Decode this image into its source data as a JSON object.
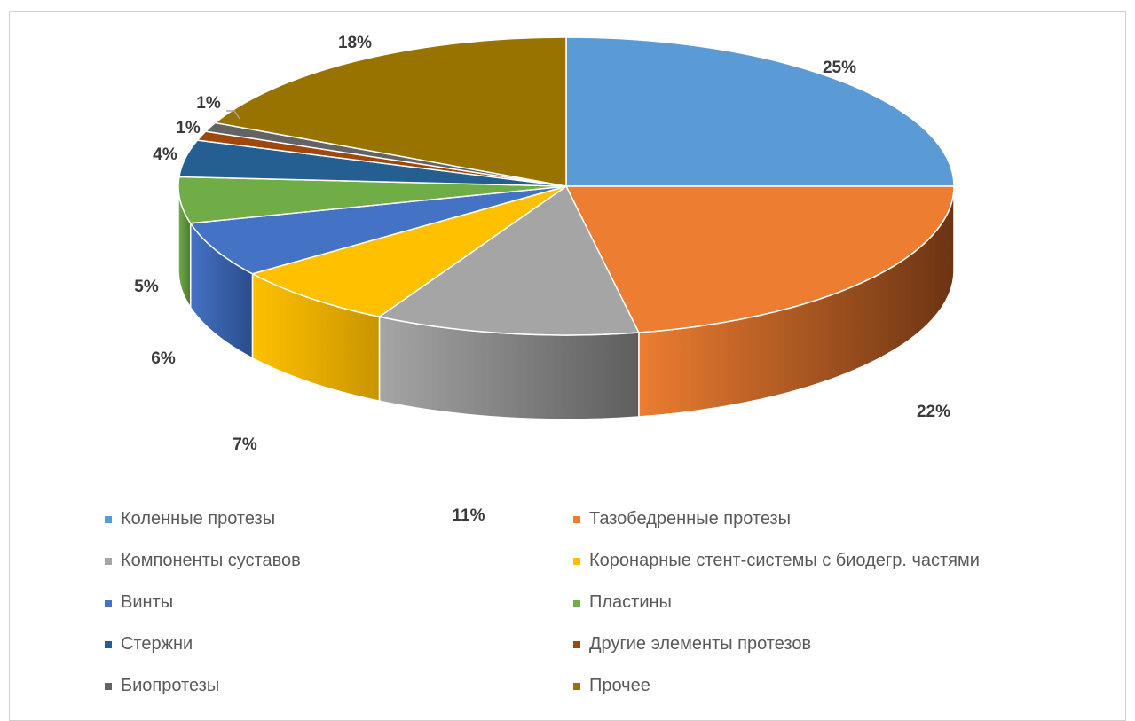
{
  "chart_data": {
    "type": "pie",
    "title": "",
    "legend_position": "bottom",
    "series": [
      {
        "name": "Коленные протезы",
        "value": 25,
        "label": "25%",
        "color": "#5b9bd5",
        "side": "#3c6d9c"
      },
      {
        "name": "Тазобедренные протезы",
        "value": 22,
        "label": "22%",
        "color": "#ed7d31",
        "side": "#6b3413"
      },
      {
        "name": "Компоненты суставов",
        "value": 11,
        "label": "11%",
        "color": "#a5a5a5",
        "side": "#5e5e5e"
      },
      {
        "name": "Коронарные стент-системы с биодегр. частями",
        "value": 7,
        "label": "7%",
        "color": "#ffc000",
        "side": "#c99500"
      },
      {
        "name": "Винты",
        "value": 6,
        "label": "6%",
        "color": "#4472c4",
        "side": "#2b4c8a"
      },
      {
        "name": "Пластины",
        "value": 5,
        "label": "5%",
        "color": "#70ad47",
        "side": "#4a7a2e"
      },
      {
        "name": "Стержни",
        "value": 4,
        "label": "4%",
        "color": "#255e91",
        "side": "#163a5a"
      },
      {
        "name": "Другие элементы протезов",
        "value": 1,
        "label": "1%",
        "color": "#9e480e",
        "side": "#5e2a08"
      },
      {
        "name": "Биопротезы",
        "value": 1,
        "label": "1%",
        "color": "#636363",
        "side": "#3c3c3c"
      },
      {
        "name": "Прочее",
        "value": 18,
        "label": "18%",
        "color": "#997300",
        "side": "#5e4700"
      }
    ]
  }
}
